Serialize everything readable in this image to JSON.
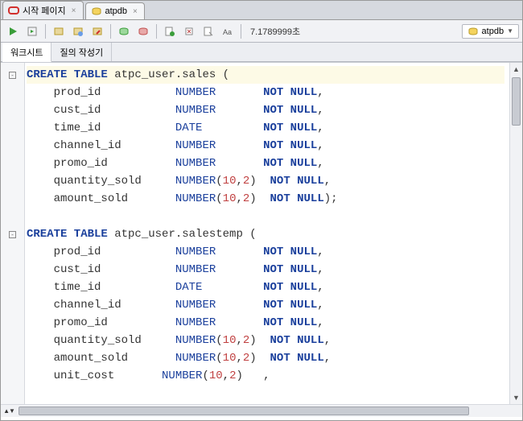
{
  "tabs": [
    {
      "label": "시작 페이지",
      "icon": "oracle",
      "active": false
    },
    {
      "label": "atpdb",
      "icon": "sql",
      "active": true
    }
  ],
  "toolbar": {
    "elapsed": "7.1789999초",
    "connection": "atpdb"
  },
  "secondary_tabs": [
    {
      "label": "워크시트",
      "active": true
    },
    {
      "label": "질의 작성기",
      "active": false
    }
  ],
  "colors": {
    "keyword": "#1a3f9c",
    "number": "#c04040",
    "text": "#333333",
    "highlight_bg": "#fdfae6",
    "gutter_bg": "#f5f6f8",
    "toolbar_bg": "#f1f2f5",
    "tabbar_bg": "#d6d9df"
  },
  "code_lines": [
    {
      "fold": true,
      "hl": true,
      "segments": [
        {
          "t": "CREATE TABLE",
          "c": "kw"
        },
        {
          "t": " atpc_user.sales ",
          "c": "ident"
        },
        {
          "t": "(",
          "c": "punct"
        }
      ]
    },
    {
      "segments": [
        {
          "t": "    prod_id           ",
          "c": "ident"
        },
        {
          "t": "NUMBER",
          "c": "type"
        },
        {
          "t": "       ",
          "c": ""
        },
        {
          "t": "NOT NULL",
          "c": "kw"
        },
        {
          "t": ",",
          "c": "punct"
        }
      ]
    },
    {
      "segments": [
        {
          "t": "    cust_id           ",
          "c": "ident"
        },
        {
          "t": "NUMBER",
          "c": "type"
        },
        {
          "t": "       ",
          "c": ""
        },
        {
          "t": "NOT NULL",
          "c": "kw"
        },
        {
          "t": ",",
          "c": "punct"
        }
      ]
    },
    {
      "segments": [
        {
          "t": "    time_id           ",
          "c": "ident"
        },
        {
          "t": "DATE",
          "c": "type"
        },
        {
          "t": "         ",
          "c": ""
        },
        {
          "t": "NOT NULL",
          "c": "kw"
        },
        {
          "t": ",",
          "c": "punct"
        }
      ]
    },
    {
      "segments": [
        {
          "t": "    channel_id        ",
          "c": "ident"
        },
        {
          "t": "NUMBER",
          "c": "type"
        },
        {
          "t": "       ",
          "c": ""
        },
        {
          "t": "NOT NULL",
          "c": "kw"
        },
        {
          "t": ",",
          "c": "punct"
        }
      ]
    },
    {
      "segments": [
        {
          "t": "    promo_id          ",
          "c": "ident"
        },
        {
          "t": "NUMBER",
          "c": "type"
        },
        {
          "t": "       ",
          "c": ""
        },
        {
          "t": "NOT NULL",
          "c": "kw"
        },
        {
          "t": ",",
          "c": "punct"
        }
      ]
    },
    {
      "segments": [
        {
          "t": "    quantity_sold     ",
          "c": "ident"
        },
        {
          "t": "NUMBER",
          "c": "type"
        },
        {
          "t": "(",
          "c": "punct"
        },
        {
          "t": "10",
          "c": "num"
        },
        {
          "t": ",",
          "c": "punct"
        },
        {
          "t": "2",
          "c": "num"
        },
        {
          "t": ")",
          "c": "punct"
        },
        {
          "t": "  ",
          "c": ""
        },
        {
          "t": "NOT NULL",
          "c": "kw"
        },
        {
          "t": ",",
          "c": "punct"
        }
      ]
    },
    {
      "segments": [
        {
          "t": "    amount_sold       ",
          "c": "ident"
        },
        {
          "t": "NUMBER",
          "c": "type"
        },
        {
          "t": "(",
          "c": "punct"
        },
        {
          "t": "10",
          "c": "num"
        },
        {
          "t": ",",
          "c": "punct"
        },
        {
          "t": "2",
          "c": "num"
        },
        {
          "t": ")",
          "c": "punct"
        },
        {
          "t": "  ",
          "c": ""
        },
        {
          "t": "NOT NULL",
          "c": "kw"
        },
        {
          "t": ")",
          "c": "punct"
        },
        {
          "t": ";",
          "c": "punct"
        }
      ]
    },
    {
      "segments": [
        {
          "t": " ",
          "c": ""
        }
      ]
    },
    {
      "fold": true,
      "segments": [
        {
          "t": "CREATE TABLE",
          "c": "kw"
        },
        {
          "t": " atpc_user.salestemp ",
          "c": "ident"
        },
        {
          "t": "(",
          "c": "punct"
        }
      ]
    },
    {
      "segments": [
        {
          "t": "    prod_id           ",
          "c": "ident"
        },
        {
          "t": "NUMBER",
          "c": "type"
        },
        {
          "t": "       ",
          "c": ""
        },
        {
          "t": "NOT NULL",
          "c": "kw"
        },
        {
          "t": ",",
          "c": "punct"
        }
      ]
    },
    {
      "segments": [
        {
          "t": "    cust_id           ",
          "c": "ident"
        },
        {
          "t": "NUMBER",
          "c": "type"
        },
        {
          "t": "       ",
          "c": ""
        },
        {
          "t": "NOT NULL",
          "c": "kw"
        },
        {
          "t": ",",
          "c": "punct"
        }
      ]
    },
    {
      "segments": [
        {
          "t": "    time_id           ",
          "c": "ident"
        },
        {
          "t": "DATE",
          "c": "type"
        },
        {
          "t": "         ",
          "c": ""
        },
        {
          "t": "NOT NULL",
          "c": "kw"
        },
        {
          "t": ",",
          "c": "punct"
        }
      ]
    },
    {
      "segments": [
        {
          "t": "    channel_id        ",
          "c": "ident"
        },
        {
          "t": "NUMBER",
          "c": "type"
        },
        {
          "t": "       ",
          "c": ""
        },
        {
          "t": "NOT NULL",
          "c": "kw"
        },
        {
          "t": ",",
          "c": "punct"
        }
      ]
    },
    {
      "segments": [
        {
          "t": "    promo_id          ",
          "c": "ident"
        },
        {
          "t": "NUMBER",
          "c": "type"
        },
        {
          "t": "       ",
          "c": ""
        },
        {
          "t": "NOT NULL",
          "c": "kw"
        },
        {
          "t": ",",
          "c": "punct"
        }
      ]
    },
    {
      "segments": [
        {
          "t": "    quantity_sold     ",
          "c": "ident"
        },
        {
          "t": "NUMBER",
          "c": "type"
        },
        {
          "t": "(",
          "c": "punct"
        },
        {
          "t": "10",
          "c": "num"
        },
        {
          "t": ",",
          "c": "punct"
        },
        {
          "t": "2",
          "c": "num"
        },
        {
          "t": ")",
          "c": "punct"
        },
        {
          "t": "  ",
          "c": ""
        },
        {
          "t": "NOT NULL",
          "c": "kw"
        },
        {
          "t": ",",
          "c": "punct"
        }
      ]
    },
    {
      "segments": [
        {
          "t": "    amount_sold       ",
          "c": "ident"
        },
        {
          "t": "NUMBER",
          "c": "type"
        },
        {
          "t": "(",
          "c": "punct"
        },
        {
          "t": "10",
          "c": "num"
        },
        {
          "t": ",",
          "c": "punct"
        },
        {
          "t": "2",
          "c": "num"
        },
        {
          "t": ")",
          "c": "punct"
        },
        {
          "t": "  ",
          "c": ""
        },
        {
          "t": "NOT NULL",
          "c": "kw"
        },
        {
          "t": ",",
          "c": "punct"
        }
      ]
    },
    {
      "segments": [
        {
          "t": "    unit_cost       ",
          "c": "ident"
        },
        {
          "t": "NUMBER",
          "c": "type"
        },
        {
          "t": "(",
          "c": "punct"
        },
        {
          "t": "10",
          "c": "num"
        },
        {
          "t": ",",
          "c": "punct"
        },
        {
          "t": "2",
          "c": "num"
        },
        {
          "t": ")",
          "c": "punct"
        },
        {
          "t": "   ,",
          "c": "punct"
        }
      ]
    }
  ]
}
